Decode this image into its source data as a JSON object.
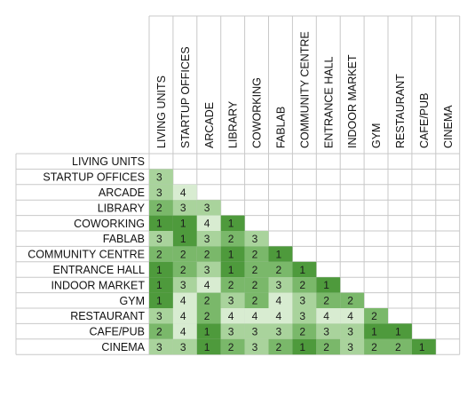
{
  "chart_data": {
    "type": "heatmap",
    "title": "",
    "columns": [
      "LIVING UNITS",
      "STARTUP OFFICES",
      "ARCADE",
      "LIBRARY",
      "COWORKING",
      "FABLAB",
      "COMMUNITY CENTRE",
      "ENTRANCE HALL",
      "INDOOR MARKET",
      "GYM",
      "RESTAURANT",
      "CAFE/PUB",
      "CINEMA"
    ],
    "rows": [
      "LIVING UNITS",
      "STARTUP OFFICES",
      "ARCADE",
      "LIBRARY",
      "COWORKING",
      "FABLAB",
      "COMMUNITY CENTRE",
      "ENTRANCE HALL",
      "INDOOR MARKET",
      "GYM",
      "RESTAURANT",
      "CAFE/PUB",
      "CINEMA"
    ],
    "values": [
      [],
      [
        3
      ],
      [
        3,
        4
      ],
      [
        2,
        3,
        3
      ],
      [
        1,
        1,
        4,
        1
      ],
      [
        3,
        1,
        3,
        2,
        3
      ],
      [
        2,
        2,
        2,
        1,
        2,
        1
      ],
      [
        1,
        2,
        3,
        1,
        2,
        2,
        1
      ],
      [
        1,
        3,
        4,
        2,
        2,
        3,
        2,
        1
      ],
      [
        1,
        4,
        2,
        3,
        2,
        4,
        3,
        2,
        2
      ],
      [
        3,
        4,
        2,
        4,
        4,
        4,
        3,
        4,
        4,
        2
      ],
      [
        2,
        4,
        1,
        3,
        3,
        3,
        2,
        3,
        3,
        1,
        1
      ],
      [
        3,
        3,
        1,
        2,
        3,
        2,
        1,
        2,
        3,
        2,
        2,
        1
      ]
    ],
    "color_scale": {
      "1": "#4e9a3c",
      "2": "#7ab86a",
      "3": "#a9d39c",
      "4": "#d8ecd1"
    },
    "grid": true,
    "layout": "lower-triangular matrix"
  }
}
